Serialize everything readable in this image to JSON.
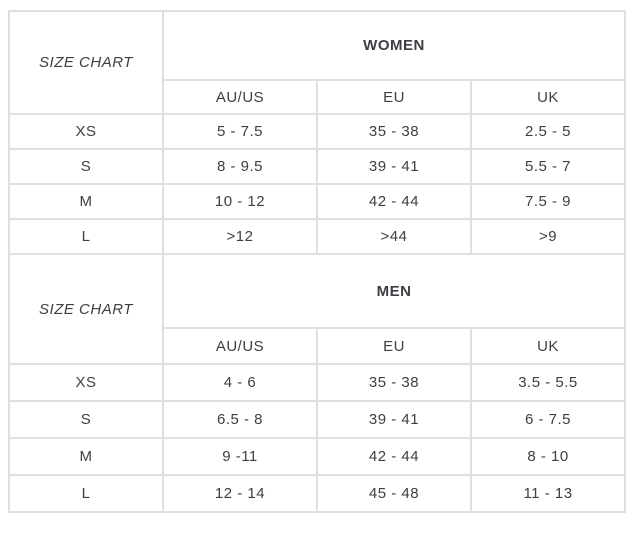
{
  "colors": {
    "background": "#ffffff",
    "border": "#dfdfdf",
    "text": "#3e3e44",
    "heading_text": "#2c2c32"
  },
  "chart_data": [
    {
      "type": "table",
      "corner_label": "SIZE CHART",
      "title": "WOMEN",
      "columns": [
        "AU/US",
        "EU",
        "UK"
      ],
      "rows": [
        [
          "XS",
          "5 - 7.5",
          "35 - 38",
          "2.5 - 5"
        ],
        [
          "S",
          "8 - 9.5",
          "39 - 41",
          "5.5 - 7"
        ],
        [
          "M",
          "10 - 12",
          "42 - 44",
          "7.5 - 9"
        ],
        [
          "L",
          ">12",
          ">44",
          ">9"
        ]
      ]
    },
    {
      "type": "table",
      "corner_label": "SIZE CHART",
      "title": "MEN",
      "columns": [
        "AU/US",
        "EU",
        "UK"
      ],
      "rows": [
        [
          "XS",
          "4 - 6",
          "35 - 38",
          "3.5 - 5.5"
        ],
        [
          "S",
          "6.5 - 8",
          "39 - 41",
          "6 - 7.5"
        ],
        [
          "M",
          "9 -11",
          "42 - 44",
          "8 - 10"
        ],
        [
          "L",
          "12 - 14",
          "45 - 48",
          "11 - 13"
        ]
      ]
    }
  ]
}
